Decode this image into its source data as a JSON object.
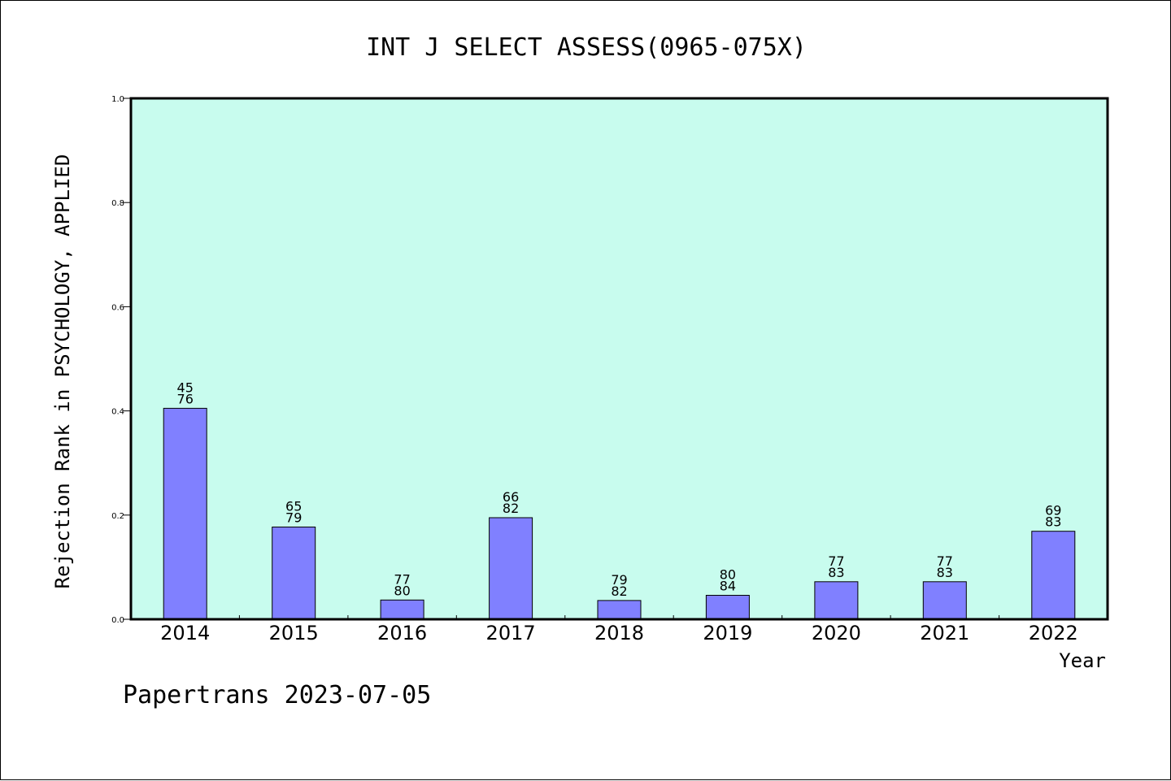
{
  "chart_data": {
    "type": "bar",
    "title": "INT J SELECT ASSESS(0965-075X)",
    "xlabel": "Year",
    "ylabel": "Rejection Rank in PSYCHOLOGY, APPLIED",
    "categories": [
      "2014",
      "2015",
      "2016",
      "2017",
      "2018",
      "2019",
      "2020",
      "2021",
      "2022"
    ],
    "values": [
      0.405,
      0.177,
      0.037,
      0.195,
      0.036,
      0.046,
      0.072,
      0.072,
      0.169
    ],
    "label_top": [
      "45",
      "65",
      "77",
      "66",
      "79",
      "80",
      "77",
      "77",
      "69"
    ],
    "label_bottom": [
      "76",
      "79",
      "80",
      "82",
      "82",
      "84",
      "83",
      "83",
      "83"
    ],
    "ylim": [
      0,
      1.0
    ],
    "yticks": [
      "0.0",
      "0.2",
      "0.4",
      "0.6",
      "0.8",
      "1.0"
    ],
    "grid": false,
    "bar_color": "#8080ff",
    "plot_background": "#c8fcee"
  },
  "footer": {
    "text": "Papertrans 2023-07-05"
  }
}
